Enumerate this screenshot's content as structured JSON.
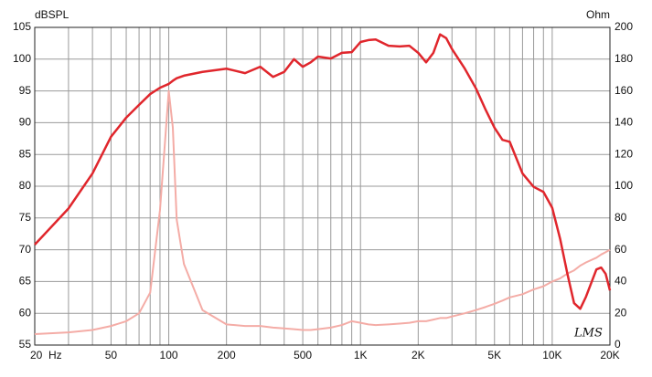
{
  "chart_data": {
    "type": "line",
    "y_label": "dBSPL",
    "y2_label": "Ohm",
    "watermark": "LMS",
    "x_scale": "log",
    "x": [
      20,
      30,
      40,
      50,
      60,
      70,
      80,
      90,
      100,
      105,
      110,
      120,
      150,
      200,
      250,
      300,
      350,
      400,
      450,
      500,
      550,
      600,
      700,
      800,
      900,
      1000,
      1100,
      1200,
      1400,
      1600,
      1800,
      2000,
      2200,
      2400,
      2600,
      2800,
      3000,
      3500,
      4000,
      4500,
      5000,
      5500,
      6000,
      7000,
      8000,
      9000,
      10000,
      11000,
      12000,
      13000,
      14000,
      15000,
      17000,
      18000,
      19000,
      20000
    ],
    "series": [
      {
        "name": "SPL",
        "color": "#e0262c",
        "axis": "y",
        "values": [
          70.8,
          76.5,
          82,
          87.8,
          90.8,
          92.8,
          94.5,
          95.5,
          96.1,
          96.6,
          97,
          97.4,
          98,
          98.5,
          97.8,
          98.8,
          97.2,
          98,
          100,
          98.8,
          99.5,
          100.4,
          100.1,
          101,
          101.1,
          102.7,
          103,
          103.1,
          102.1,
          102,
          102.1,
          101,
          99.5,
          101,
          103.9,
          103.3,
          101.6,
          98.5,
          95.4,
          92,
          89.2,
          87.3,
          87,
          82,
          79.9,
          79.1,
          76.6,
          71.7,
          66.2,
          61.6,
          60.7,
          62.6,
          66.9,
          67.2,
          66.2,
          63.6
        ]
      },
      {
        "name": "Impedance",
        "color": "#f4aca6",
        "axis": "y2",
        "values": [
          6.9,
          8,
          9.5,
          12,
          15,
          20,
          33,
          85,
          160,
          137,
          79,
          51,
          22,
          13,
          12,
          12,
          11,
          10.5,
          10,
          9.5,
          9.5,
          10,
          11,
          12.6,
          15,
          14,
          13,
          12.6,
          13,
          13.5,
          14,
          15,
          15,
          16,
          17,
          17,
          18,
          20,
          22,
          24,
          26,
          28,
          30,
          32,
          35,
          37,
          40,
          42,
          45,
          47,
          50,
          52,
          55,
          57,
          58.5,
          60
        ]
      }
    ],
    "xlim": [
      20,
      20000
    ],
    "xticks": [
      {
        "value": 20,
        "label": "20  Hz"
      },
      50,
      100,
      200,
      500,
      {
        "value": 1000,
        "label": "1K"
      },
      {
        "value": 2000,
        "label": "2K"
      },
      {
        "value": 5000,
        "label": "5K"
      },
      {
        "value": 10000,
        "label": "10K"
      },
      {
        "value": 20000,
        "label": "20K"
      }
    ],
    "xgrid_minor": [
      30,
      40,
      60,
      70,
      80,
      90,
      300,
      400,
      600,
      700,
      800,
      900,
      3000,
      4000,
      6000,
      7000,
      8000,
      9000
    ],
    "ylim": [
      55,
      105
    ],
    "yticks": [
      55,
      60,
      65,
      70,
      75,
      80,
      85,
      90,
      95,
      100,
      105
    ],
    "y2lim": [
      0,
      200
    ],
    "y2ticks": [
      0,
      20,
      40,
      60,
      80,
      100,
      120,
      140,
      160,
      180,
      200
    ],
    "grid": true,
    "grid_color": "#9a9a9a"
  }
}
